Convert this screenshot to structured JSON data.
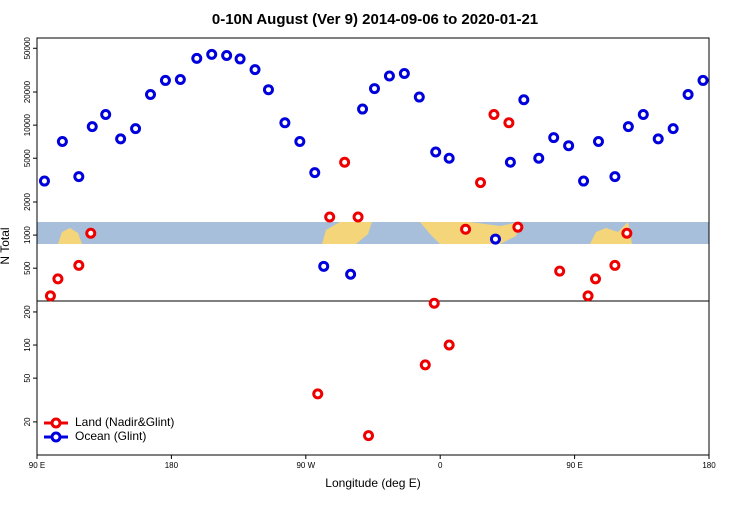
{
  "chart_data": {
    "type": "scatter",
    "title": "0-10N August (Ver 9)   2014-09-06 to 2020-01-21",
    "x_label": "Longitude (deg E)",
    "y_label": "N Total",
    "log_y": true,
    "legend": "lower left",
    "xlim": [
      90,
      540
    ],
    "xticks": [
      {
        "value": 90,
        "label": "90 E"
      },
      {
        "value": 180,
        "label": "180"
      },
      {
        "value": 270,
        "label": "90 W"
      },
      {
        "value": 360,
        "label": "0"
      },
      {
        "value": 450,
        "label": "90 E"
      },
      {
        "value": 540,
        "label": "180"
      }
    ],
    "ylim": [
      10,
      62000
    ],
    "yticks": [
      20,
      50,
      100,
      200,
      500,
      1000,
      2000,
      5000,
      10000,
      20000,
      50000
    ],
    "series": [
      {
        "name": "Land (Nadir&Glint)",
        "color": "#ee0000",
        "x": [
          99,
          104,
          118,
          126,
          286,
          296,
          305,
          312,
          278,
          350,
          356,
          366,
          377,
          387,
          396,
          406,
          412,
          440,
          459,
          464,
          477,
          485
        ],
        "values": [
          280,
          400,
          530,
          1040,
          1460,
          4600,
          1460,
          15,
          36,
          66,
          240,
          100,
          1130,
          3000,
          12500,
          10500,
          1180,
          470,
          280,
          400,
          530,
          1040
        ]
      },
      {
        "name": "Ocean (Glint)",
        "color": "#0000dd",
        "x": [
          95,
          107,
          118,
          127,
          136,
          146,
          156,
          166,
          176,
          186,
          197,
          207,
          217,
          226,
          236,
          245,
          256,
          266,
          276,
          282,
          300,
          308,
          316,
          326,
          336,
          346,
          357,
          366,
          397,
          407,
          416,
          426,
          436,
          446,
          456,
          466,
          477,
          486,
          496,
          506,
          516,
          526,
          536
        ],
        "values": [
          3100,
          7100,
          3400,
          9700,
          12500,
          7500,
          9300,
          19000,
          25500,
          26000,
          40500,
          44000,
          43000,
          40000,
          32000,
          21000,
          10500,
          7100,
          3700,
          520,
          440,
          14000,
          21500,
          28000,
          29500,
          18000,
          5700,
          5000,
          920,
          4600,
          17000,
          5000,
          7700,
          6500,
          3100,
          7100,
          3400,
          9700,
          12500,
          7500,
          9300,
          19000,
          25500
        ]
      }
    ]
  }
}
